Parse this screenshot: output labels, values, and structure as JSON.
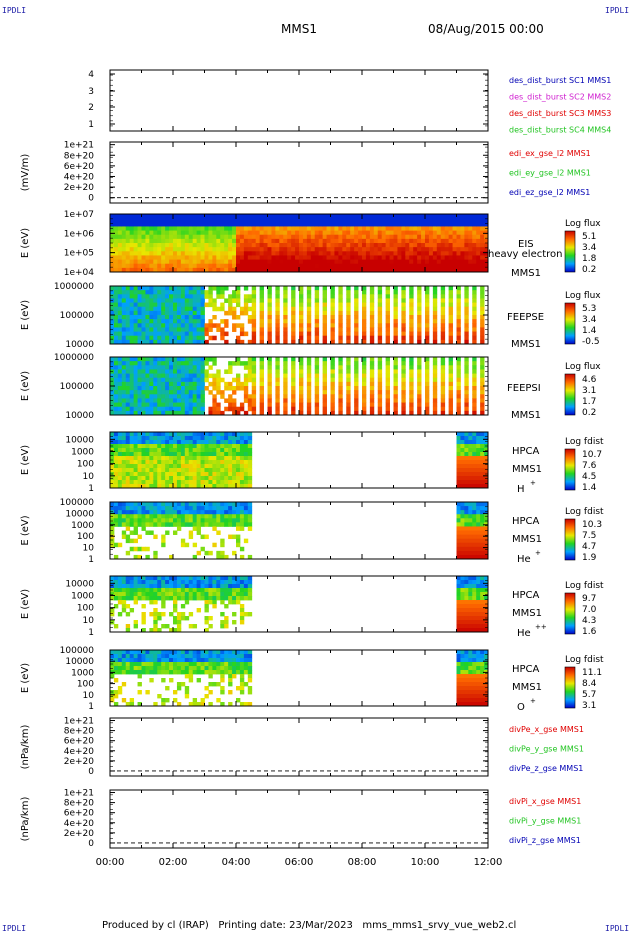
{
  "header": {
    "corner_label": "IPDLI",
    "spacecraft": "MMS1",
    "datetime": "08/Aug/2015 00:00"
  },
  "footer": {
    "produced_by": "Produced by cl (IRAP)",
    "printing_date": "Printing date: 23/Mar/2023",
    "script_name": "mms_mms1_srvy_vue_web2.cl"
  },
  "colors": {
    "blue": "#0000b4",
    "green": "#22c422",
    "red": "#e00000",
    "magenta": "#d020d0"
  },
  "chart_data": [
    {
      "type": "line",
      "panel": "burst",
      "yticks": [
        "4",
        "3",
        "2",
        "1"
      ],
      "ylim": [
        0.5,
        4.5
      ],
      "xlim": [
        0,
        12
      ],
      "legend": [
        {
          "text": "des_dist_burst SC1 MMS1",
          "color": "#0000b4"
        },
        {
          "text": "des_dist_burst SC2 MMS2",
          "color": "#d020d0"
        },
        {
          "text": "des_dist_burst SC3 MMS3",
          "color": "#e00000"
        },
        {
          "text": "des_dist_burst SC4 MMS4",
          "color": "#22c422"
        }
      ]
    },
    {
      "type": "line",
      "panel": "efield",
      "ylabel": "(mV/m)",
      "yticks": [
        "1e+21",
        "8e+20",
        "6e+20",
        "4e+20",
        "2e+20",
        "0"
      ],
      "ylim": [
        -1e+20,
        1.05e+21
      ],
      "xlim": [
        0,
        12
      ],
      "legend": [
        {
          "text": "edi_ex_gse_l2 MMS1",
          "color": "#e00000"
        },
        {
          "text": "edi_ey_gse_l2 MMS1",
          "color": "#22c422"
        },
        {
          "text": "edi_ez_gse_l2 MMS1",
          "color": "#0000b4"
        }
      ]
    },
    {
      "type": "heatmap",
      "panel": "eis",
      "ylabel": "E (eV)",
      "scale": "log",
      "yticks": [
        "1e+07",
        "1e+06",
        "1e+05",
        "1e+04"
      ],
      "ylim": [
        10000.0,
        10000000.0
      ],
      "xlim": [
        0,
        12
      ],
      "labels": [
        "EIS",
        "heavy electron to",
        "MMS1"
      ],
      "colorbar": {
        "title": "Log flux",
        "ticks": [
          "5.1",
          "3.4",
          "1.8",
          "0.2"
        ]
      }
    },
    {
      "type": "heatmap",
      "panel": "feeps_e",
      "ylabel": "E (eV)",
      "scale": "log",
      "yticks": [
        "1000000",
        "100000",
        "10000"
      ],
      "ylim": [
        10000.0,
        1000000.0
      ],
      "xlim": [
        0,
        12
      ],
      "labels": [
        "FEEPSE",
        "MMS1"
      ],
      "colorbar": {
        "title": "Log flux",
        "ticks": [
          "5.3",
          "3.4",
          "1.4",
          "-0.5"
        ]
      }
    },
    {
      "type": "heatmap",
      "panel": "feeps_i",
      "ylabel": "E (eV)",
      "scale": "log",
      "yticks": [
        "1000000",
        "100000",
        "10000"
      ],
      "ylim": [
        10000.0,
        1000000.0
      ],
      "xlim": [
        0,
        12
      ],
      "labels": [
        "FEEPSI",
        "MMS1"
      ],
      "colorbar": {
        "title": "Log flux",
        "ticks": [
          "4.6",
          "3.1",
          "1.7",
          "0.2"
        ]
      }
    },
    {
      "type": "heatmap",
      "panel": "hpca_h",
      "ylabel": "E (eV)",
      "scale": "log",
      "yticks": [
        "10000",
        "1000",
        "100",
        "10",
        "1"
      ],
      "ylim": [
        1,
        40000
      ],
      "xlim": [
        0,
        12
      ],
      "labels": [
        "HPCA",
        "MMS1",
        "H",
        "+"
      ],
      "colorbar": {
        "title": "Log fdist",
        "ticks": [
          "10.7",
          "7.6",
          "4.5",
          "1.4"
        ]
      },
      "coverage_hours": [
        [
          0,
          4.45
        ],
        [
          11.0,
          12.0
        ]
      ]
    },
    {
      "type": "heatmap",
      "panel": "hpca_he",
      "ylabel": "E (eV)",
      "scale": "log",
      "yticks": [
        "100000",
        "10000",
        "1000",
        "100",
        "10",
        "1"
      ],
      "ylim": [
        1,
        100000
      ],
      "xlim": [
        0,
        12
      ],
      "labels": [
        "HPCA",
        "MMS1",
        "He",
        "+"
      ],
      "colorbar": {
        "title": "Log fdist",
        "ticks": [
          "10.3",
          "7.5",
          "4.7",
          "1.9"
        ]
      },
      "coverage_hours": [
        [
          0,
          4.45
        ],
        [
          11.0,
          12.0
        ]
      ]
    },
    {
      "type": "heatmap",
      "panel": "hpca_he2",
      "ylabel": "E (eV)",
      "scale": "log",
      "yticks": [
        "10000",
        "1000",
        "100",
        "10",
        "1"
      ],
      "ylim": [
        1,
        40000
      ],
      "xlim": [
        0,
        12
      ],
      "labels": [
        "HPCA",
        "MMS1",
        "He",
        "++"
      ],
      "colorbar": {
        "title": "Log fdist",
        "ticks": [
          "9.7",
          "7.0",
          "4.3",
          "1.6"
        ]
      },
      "coverage_hours": [
        [
          0,
          4.45
        ],
        [
          11.0,
          12.0
        ]
      ]
    },
    {
      "type": "heatmap",
      "panel": "hpca_o",
      "ylabel": "E (eV)",
      "scale": "log",
      "yticks": [
        "100000",
        "10000",
        "1000",
        "100",
        "10",
        "1"
      ],
      "ylim": [
        1,
        100000
      ],
      "xlim": [
        0,
        12
      ],
      "labels": [
        "HPCA",
        "MMS1",
        "O",
        "+"
      ],
      "colorbar": {
        "title": "Log fdist",
        "ticks": [
          "11.1",
          "8.4",
          "5.7",
          "3.1"
        ]
      },
      "coverage_hours": [
        [
          0,
          4.45
        ],
        [
          11.0,
          12.0
        ]
      ]
    },
    {
      "type": "line",
      "panel": "divpe",
      "ylabel": "(nPa/km)",
      "yticks": [
        "1e+21",
        "8e+20",
        "6e+20",
        "4e+20",
        "2e+20",
        "0"
      ],
      "ylim": [
        -1e+20,
        1.05e+21
      ],
      "xlim": [
        0,
        12
      ],
      "legend": [
        {
          "text": "divPe_x_gse MMS1",
          "color": "#e00000"
        },
        {
          "text": "divPe_y_gse MMS1",
          "color": "#22c422"
        },
        {
          "text": "divPe_z_gse MMS1",
          "color": "#0000b4"
        }
      ]
    },
    {
      "type": "line",
      "panel": "divpi",
      "ylabel": "(nPa/km)",
      "yticks": [
        "1e+21",
        "8e+20",
        "6e+20",
        "4e+20",
        "2e+20",
        "0"
      ],
      "ylim": [
        -1e+20,
        1.05e+21
      ],
      "xlim": [
        0,
        12
      ],
      "legend": [
        {
          "text": "divPi_x_gse MMS1",
          "color": "#e00000"
        },
        {
          "text": "divPi_y_gse MMS1",
          "color": "#22c422"
        },
        {
          "text": "divPi_z_gse MMS1",
          "color": "#0000b4"
        }
      ],
      "xticks": [
        "00:00",
        "02:00",
        "04:00",
        "06:00",
        "08:00",
        "10:00",
        "12:00"
      ]
    }
  ]
}
